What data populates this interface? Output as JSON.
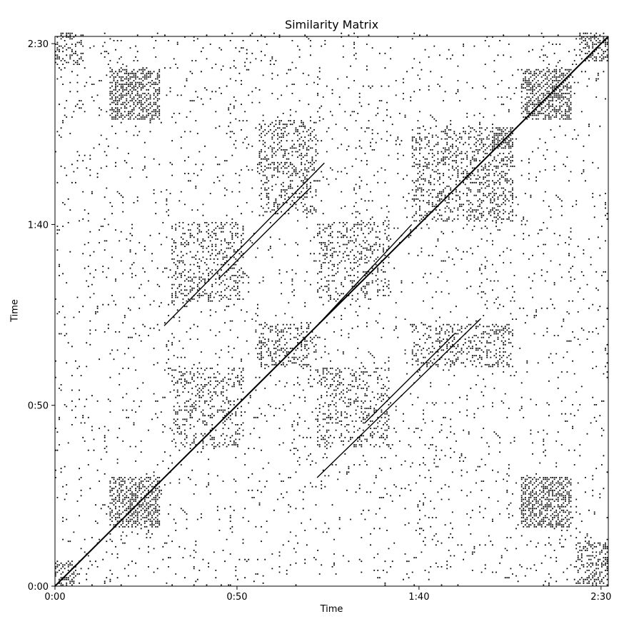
{
  "chart_data": {
    "type": "heatmap",
    "title": "Similarity Matrix",
    "xlabel": "Time",
    "ylabel": "Time",
    "x_range_seconds": [
      0,
      152
    ],
    "y_range_seconds": [
      0,
      152
    ],
    "x_ticks": [
      {
        "value": 0,
        "label": "0:00"
      },
      {
        "value": 50,
        "label": "0:50"
      },
      {
        "value": 100,
        "label": "1:40"
      },
      {
        "value": 150,
        "label": "2:30"
      }
    ],
    "y_ticks": [
      {
        "value": 0,
        "label": "0:00"
      },
      {
        "value": 50,
        "label": "0:50"
      },
      {
        "value": 100,
        "label": "1:40"
      },
      {
        "value": 150,
        "label": "2:30"
      }
    ],
    "colors": {
      "mark": "#000000",
      "background": "#ffffff"
    },
    "grid": false,
    "legend": "none",
    "diagonal": {
      "from": 0,
      "to": 152
    },
    "off_diagonal_lines": [
      {
        "from_x": 30,
        "from_y": 72,
        "to_x": 74,
        "to_y": 117
      },
      {
        "from_x": 72,
        "from_y": 30,
        "to_x": 117,
        "to_y": 74
      },
      {
        "from_x": 72,
        "from_y": 72,
        "to_x": 98,
        "to_y": 100
      },
      {
        "from_x": 30,
        "from_y": 30,
        "to_x": 60,
        "to_y": 60
      },
      {
        "from_x": 45,
        "from_y": 85,
        "to_x": 70,
        "to_y": 110
      },
      {
        "from_x": 85,
        "from_y": 45,
        "to_x": 110,
        "to_y": 70
      }
    ],
    "dense_blocks": [
      {
        "x": [
          15,
          29
        ],
        "y": [
          128,
          142
        ],
        "density": 0.45
      },
      {
        "x": [
          128,
          142
        ],
        "y": [
          128,
          142
        ],
        "density": 0.45
      },
      {
        "x": [
          15,
          29
        ],
        "y": [
          16,
          30
        ],
        "density": 0.45
      },
      {
        "x": [
          128,
          142
        ],
        "y": [
          16,
          30
        ],
        "density": 0.45
      },
      {
        "x": [
          0,
          7
        ],
        "y": [
          0,
          7
        ],
        "density": 0.35
      },
      {
        "x": [
          144,
          152
        ],
        "y": [
          144,
          152
        ],
        "density": 0.35
      },
      {
        "x": [
          120,
          126
        ],
        "y": [
          120,
          126
        ],
        "density": 0.5
      },
      {
        "x": [
          56,
          72
        ],
        "y": [
          102,
          128
        ],
        "density": 0.22
      },
      {
        "x": [
          98,
          126
        ],
        "y": [
          100,
          126
        ],
        "density": 0.22
      },
      {
        "x": [
          56,
          72
        ],
        "y": [
          60,
          72
        ],
        "density": 0.22
      },
      {
        "x": [
          98,
          126
        ],
        "y": [
          60,
          72
        ],
        "density": 0.22
      },
      {
        "x": [
          32,
          52
        ],
        "y": [
          38,
          60
        ],
        "density": 0.18
      },
      {
        "x": [
          72,
          92
        ],
        "y": [
          38,
          60
        ],
        "density": 0.18
      },
      {
        "x": [
          32,
          52
        ],
        "y": [
          78,
          100
        ],
        "density": 0.18
      },
      {
        "x": [
          72,
          92
        ],
        "y": [
          78,
          100
        ],
        "density": 0.18
      },
      {
        "x": [
          143,
          152
        ],
        "y": [
          0,
          12
        ],
        "density": 0.3
      },
      {
        "x": [
          0,
          8
        ],
        "y": [
          143,
          152
        ],
        "density": 0.3
      }
    ],
    "background_noise_density": 0.03
  }
}
